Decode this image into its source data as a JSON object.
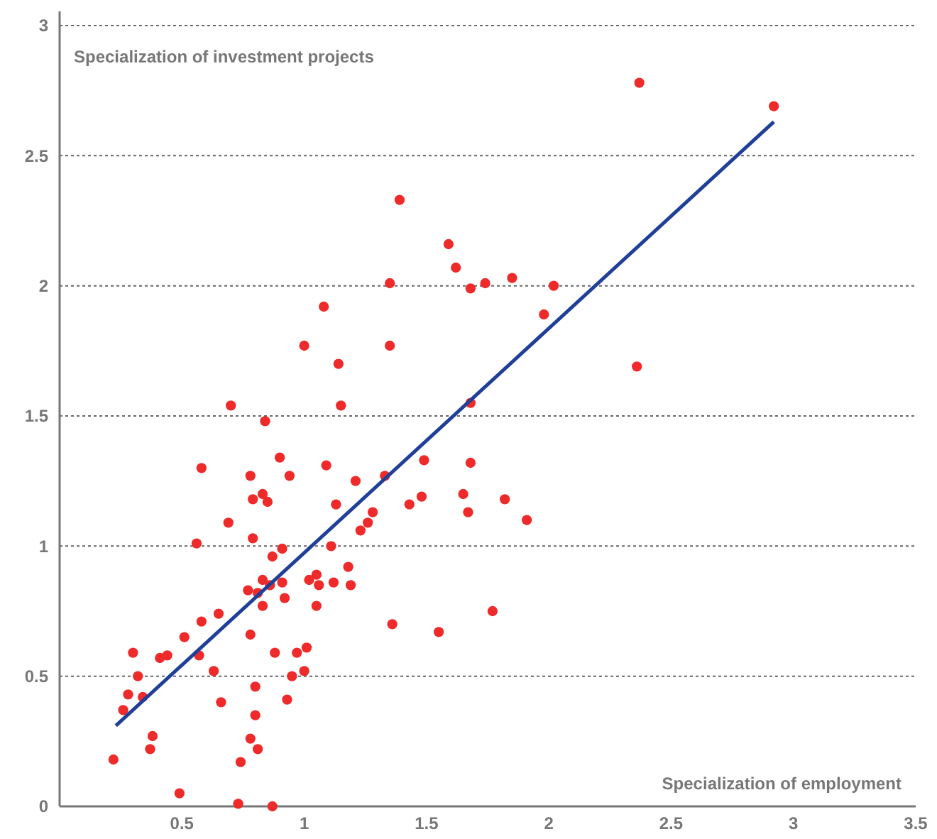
{
  "chart_data": {
    "type": "scatter",
    "xlabel": "Specialization of employment",
    "ylabel": "Specialization of investment projects",
    "xlim": [
      0,
      3.5
    ],
    "xticks": [
      0.5,
      1,
      1.5,
      2,
      2.5,
      3,
      3.5
    ],
    "ylim": [
      0,
      3
    ],
    "yticks": [
      0,
      0.5,
      1,
      1.5,
      2,
      2.5,
      3
    ],
    "grid": "y",
    "marker": "circle",
    "series": [
      {
        "color": "#ee2a2a",
        "x": [
          0.22,
          0.26,
          0.28,
          0.3,
          0.32,
          0.34,
          0.37,
          0.38,
          0.41,
          0.44,
          0.49,
          0.51,
          0.56,
          0.57,
          0.58,
          0.58,
          0.63,
          0.65,
          0.66,
          0.69,
          0.7,
          0.73,
          0.74,
          0.77,
          0.78,
          0.78,
          0.78,
          0.79,
          0.79,
          0.8,
          0.8,
          0.81,
          0.81,
          0.83,
          0.83,
          0.83,
          0.84,
          0.85,
          0.86,
          0.87,
          0.87,
          0.88,
          0.9,
          0.91,
          0.91,
          0.92,
          0.93,
          0.94,
          0.95,
          0.97,
          1.0,
          1.01,
          1.02,
          1.05,
          1.05,
          1.06,
          1.09,
          1.11,
          1.12,
          1.13,
          1.15,
          1.18,
          1.19,
          1.21,
          1.39,
          1.59,
          1.62,
          1.35,
          1.68,
          1.74,
          1.85,
          2.02,
          1.98,
          1.08,
          1.0,
          1.35,
          1.14,
          1.68,
          1.33,
          1.49,
          1.68,
          1.65,
          1.82,
          1.48,
          1.43,
          1.67,
          1.91,
          1.28,
          1.26,
          1.23,
          1.36,
          1.55,
          1.77,
          2.37,
          2.92,
          2.36
        ],
        "values": [
          0.18,
          0.37,
          0.43,
          0.59,
          0.5,
          0.42,
          0.22,
          0.27,
          0.57,
          0.58,
          0.05,
          0.65,
          1.01,
          0.58,
          1.3,
          0.71,
          0.52,
          0.74,
          0.4,
          1.09,
          1.54,
          0.01,
          0.17,
          0.83,
          0.26,
          0.66,
          1.27,
          1.18,
          1.03,
          0.46,
          0.35,
          0.22,
          0.82,
          0.87,
          1.2,
          0.77,
          1.48,
          1.17,
          0.85,
          0.0,
          0.96,
          0.59,
          1.34,
          0.86,
          0.99,
          0.8,
          0.41,
          1.27,
          0.5,
          0.59,
          0.52,
          0.61,
          0.87,
          0.77,
          0.89,
          0.85,
          1.31,
          1.0,
          0.86,
          1.16,
          1.54,
          0.92,
          0.85,
          1.25,
          2.33,
          2.16,
          2.07,
          2.01,
          1.99,
          2.01,
          2.03,
          2.0,
          1.89,
          1.92,
          1.77,
          1.77,
          1.7,
          1.55,
          1.27,
          1.33,
          1.32,
          1.2,
          1.18,
          1.19,
          1.16,
          1.13,
          1.1,
          1.13,
          1.09,
          1.06,
          0.7,
          0.67,
          0.75,
          2.78,
          2.69,
          1.69
        ]
      },
      {
        "type": "line",
        "color": "#1f3f99",
        "x": [
          0.23,
          2.92
        ],
        "values": [
          0.31,
          2.63
        ],
        "marker": "none"
      }
    ]
  }
}
